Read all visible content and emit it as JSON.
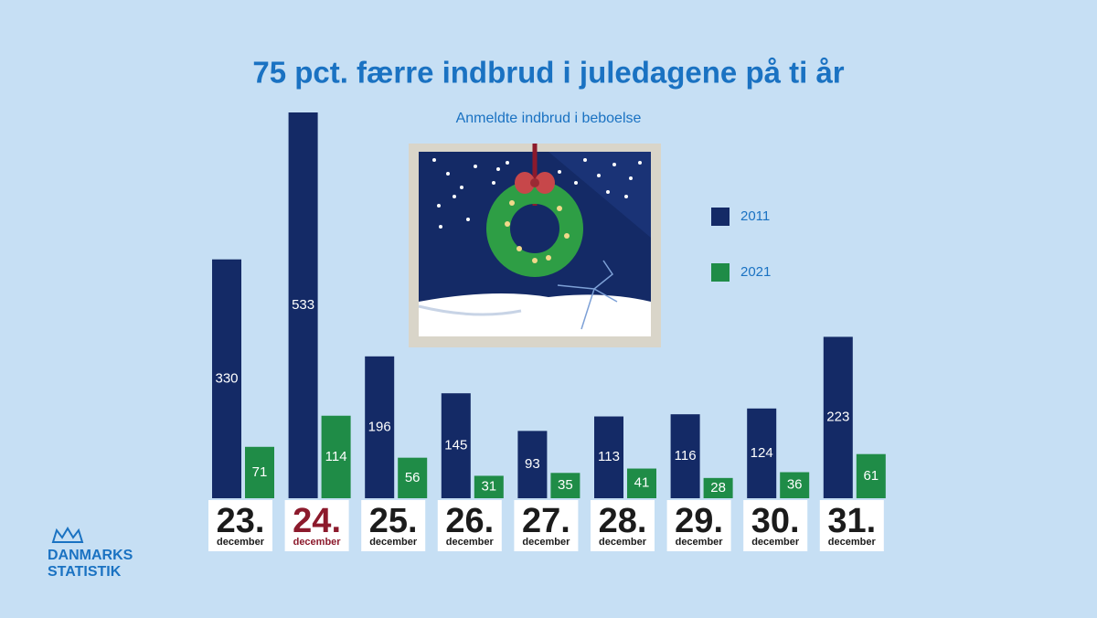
{
  "chart_data": {
    "type": "bar",
    "title": "75 pct. færre indbrud i juledagene på ti år",
    "subtitle": "Anmeldte indbrud i beboelse",
    "categories": [
      "23.",
      "24.",
      "25.",
      "26.",
      "27.",
      "28.",
      "29.",
      "30.",
      "31."
    ],
    "category_sublabels": [
      "december",
      "december",
      "december",
      "december",
      "december",
      "december",
      "december",
      "december",
      "december"
    ],
    "category_colors": [
      "#1b1b1b",
      "#8c1a2c",
      "#1b1b1b",
      "#1b1b1b",
      "#1b1b1b",
      "#1b1b1b",
      "#1b1b1b",
      "#1b1b1b",
      "#1b1b1b"
    ],
    "series": [
      {
        "name": "2011",
        "color": "#142a66",
        "values": [
          330,
          533,
          196,
          145,
          93,
          113,
          116,
          124,
          223
        ]
      },
      {
        "name": "2021",
        "color": "#1f8c47",
        "values": [
          71,
          114,
          56,
          31,
          35,
          41,
          28,
          36,
          61
        ]
      }
    ]
  },
  "logo": [
    "DANMARKS",
    "STATISTIK"
  ]
}
